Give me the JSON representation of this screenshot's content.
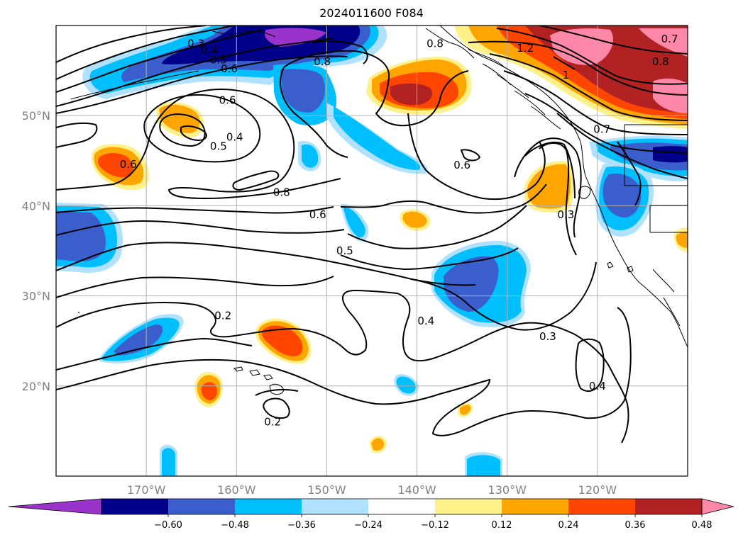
{
  "title": "2024011600 F084",
  "lat_labels": [
    {
      "text": "50°N",
      "lat": 50
    },
    {
      "text": "40°N",
      "lat": 40
    },
    {
      "text": "30°N",
      "lat": 30
    },
    {
      "text": "20°N",
      "lat": 20
    }
  ],
  "lon_labels": [
    {
      "text": "170°W",
      "lon": -170
    },
    {
      "text": "160°W",
      "lon": -160
    },
    {
      "text": "150°W",
      "lon": -150
    },
    {
      "text": "140°W",
      "lon": -140
    },
    {
      "text": "130°W",
      "lon": -130
    },
    {
      "text": "120°W",
      "lon": -120
    }
  ],
  "extent": {
    "lon_min": -180,
    "lon_max": -110,
    "lat_min": 10,
    "lat_max": 60
  },
  "colorbar": {
    "colors": [
      "#9933cc",
      "#00008b",
      "#3a5fcd",
      "#00bfff",
      "#b0e2ff",
      "#ffffff",
      "#fff08a",
      "#ffa500",
      "#ff4500",
      "#b22222",
      "#ff88aa"
    ],
    "ticks": [
      "−0.60",
      "−0.48",
      "−0.36",
      "−0.24",
      "−0.12",
      "0.12",
      "0.24",
      "0.36",
      "0.48",
      "0.60"
    ]
  },
  "contour_labels": [
    {
      "text": "0.3",
      "lon": -164.5,
      "lat": 58.0
    },
    {
      "text": "0.4",
      "lon": -163.0,
      "lat": 57.3
    },
    {
      "text": "0.5",
      "lon": -162.0,
      "lat": 56.2
    },
    {
      "text": "0.6",
      "lon": -160.8,
      "lat": 55.2
    },
    {
      "text": "0.6",
      "lon": -161.0,
      "lat": 51.7
    },
    {
      "text": "0.4",
      "lon": -160.2,
      "lat": 47.6
    },
    {
      "text": "0.5",
      "lon": -162.0,
      "lat": 46.6
    },
    {
      "text": "0.6",
      "lon": -172.0,
      "lat": 44.6
    },
    {
      "text": "0.8",
      "lon": -155.0,
      "lat": 41.5
    },
    {
      "text": "0.8",
      "lon": -150.5,
      "lat": 56.0
    },
    {
      "text": "0.8",
      "lon": -138.0,
      "lat": 58.0
    },
    {
      "text": "1.2",
      "lon": -128.0,
      "lat": 57.5
    },
    {
      "text": "1",
      "lon": -123.5,
      "lat": 54.5
    },
    {
      "text": "0.7",
      "lon": -112.0,
      "lat": 58.5
    },
    {
      "text": "0.8",
      "lon": -113.0,
      "lat": 56.0
    },
    {
      "text": "0.7",
      "lon": -119.5,
      "lat": 48.5
    },
    {
      "text": "0.6",
      "lon": -135.0,
      "lat": 44.5
    },
    {
      "text": "0.6",
      "lon": -151.0,
      "lat": 39.0
    },
    {
      "text": "0.5",
      "lon": -148.0,
      "lat": 35.0
    },
    {
      "text": "0.3",
      "lon": -123.5,
      "lat": 39.0
    },
    {
      "text": "0.4",
      "lon": -139.0,
      "lat": 27.2
    },
    {
      "text": "0.3",
      "lon": -125.5,
      "lat": 25.5
    },
    {
      "text": "0.2",
      "lon": -161.5,
      "lat": 27.8
    },
    {
      "text": "0.4",
      "lon": -120.0,
      "lat": 20.0
    },
    {
      "text": "0.2",
      "lon": -156.0,
      "lat": 16.0
    }
  ]
}
